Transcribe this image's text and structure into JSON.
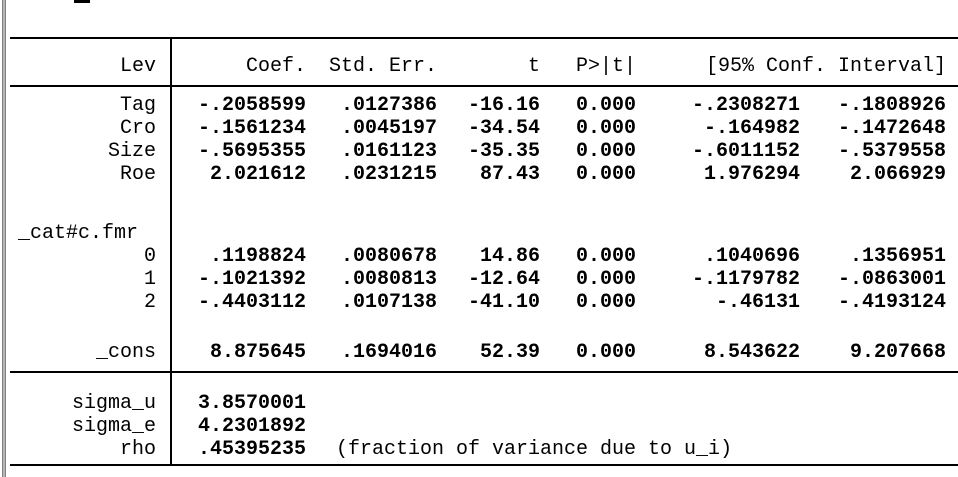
{
  "colors": {
    "text": "#000000",
    "background": "#ffffff",
    "window_edge_gray": "#808080",
    "rule_line": "#000000"
  },
  "table": {
    "header": {
      "lev": "Lev",
      "coef": "Coef.",
      "std_err": "Std. Err.",
      "t": "t",
      "p": "P>|t|",
      "ci": "[95% Conf. Interval]"
    },
    "rows": [
      {
        "type": "data",
        "label": "Tag",
        "coef": "-.2058599",
        "se": ".0127386",
        "t": "-16.16",
        "p": "0.000",
        "lo": "-.2308271",
        "hi": "-.1808926"
      },
      {
        "type": "data",
        "label": "Cro",
        "coef": "-.1561234",
        "se": ".0045197",
        "t": "-34.54",
        "p": "0.000",
        "lo": "-.164982",
        "hi": "-.1472648"
      },
      {
        "type": "data",
        "label": "Size",
        "coef": "-.5695355",
        "se": ".0161123",
        "t": "-35.35",
        "p": "0.000",
        "lo": "-.6011152",
        "hi": "-.5379558"
      },
      {
        "type": "data",
        "label": "Roe",
        "coef": "2.021612",
        "se": ".0231215",
        "t": "87.43",
        "p": "0.000",
        "lo": "1.976294",
        "hi": "2.066929"
      },
      {
        "type": "blank"
      },
      {
        "type": "group",
        "label": "_cat#c.fmr"
      },
      {
        "type": "data",
        "label": "0",
        "coef": ".1198824",
        "se": ".0080678",
        "t": "14.86",
        "p": "0.000",
        "lo": ".1040696",
        "hi": ".1356951"
      },
      {
        "type": "data",
        "label": "1",
        "coef": "-.1021392",
        "se": ".0080813",
        "t": "-12.64",
        "p": "0.000",
        "lo": "-.1179782",
        "hi": "-.0863001"
      },
      {
        "type": "data",
        "label": "2",
        "coef": "-.4403112",
        "se": ".0107138",
        "t": "-41.10",
        "p": "0.000",
        "lo": "-.46131",
        "hi": "-.4193124"
      },
      {
        "type": "blank"
      },
      {
        "type": "data",
        "label": "_cons",
        "coef": "8.875645",
        "se": ".1694016",
        "t": "52.39",
        "p": "0.000",
        "lo": "8.543622",
        "hi": "9.207668"
      }
    ],
    "sigma_rows": [
      {
        "label": "sigma_u",
        "value": "3.8570001",
        "note": ""
      },
      {
        "label": "sigma_e",
        "value": "4.2301892",
        "note": ""
      },
      {
        "label": "rho",
        "value": ".45395235",
        "note": "(fraction of variance due to u_i)"
      }
    ]
  }
}
